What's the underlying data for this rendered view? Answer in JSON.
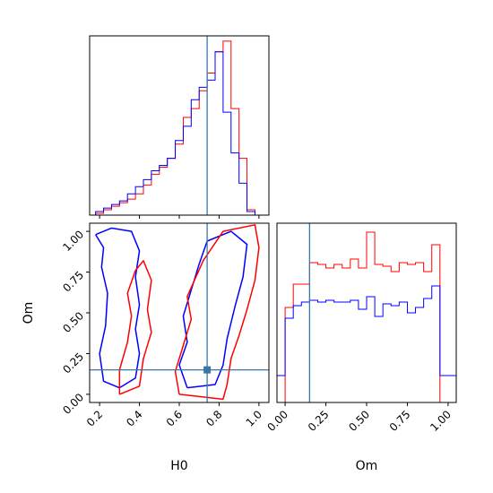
{
  "chart_data": [
    {
      "type": "histogram",
      "panel": "H0 marginal",
      "x": {
        "label": "H0",
        "range": [
          0.15,
          1.05
        ],
        "ticks": [
          0.2,
          0.4,
          0.6,
          0.8,
          1.0
        ]
      },
      "truth": 0.74,
      "bin_edges": [
        0.14,
        0.18,
        0.22,
        0.26,
        0.3,
        0.34,
        0.38,
        0.42,
        0.46,
        0.5,
        0.54,
        0.58,
        0.62,
        0.66,
        0.7,
        0.74,
        0.78,
        0.82,
        0.86,
        0.9,
        0.94,
        0.98,
        1.02
      ],
      "series": [
        {
          "color": "#ff0000",
          "values": [
            0,
            1,
            3,
            5,
            7,
            9,
            12,
            17,
            23,
            27,
            32,
            40,
            55,
            60,
            70,
            80,
            92,
            98,
            60,
            32,
            3,
            0
          ]
        },
        {
          "color": "#0000ff",
          "values": [
            0,
            2,
            4,
            6,
            8,
            12,
            16,
            20,
            25,
            28,
            32,
            42,
            50,
            65,
            72,
            76,
            92,
            58,
            35,
            18,
            2,
            0
          ]
        }
      ]
    },
    {
      "type": "contour",
      "panel": "H0 vs Om",
      "x": {
        "label": "H0",
        "range": [
          0.15,
          1.05
        ],
        "ticks": [
          0.2,
          0.4,
          0.6,
          0.8,
          1.0
        ]
      },
      "y": {
        "label": "Om",
        "range": [
          -0.05,
          1.05
        ],
        "ticks": [
          0.0,
          0.25,
          0.5,
          0.75,
          1.0
        ]
      },
      "truth": {
        "H0": 0.74,
        "Om": 0.15
      },
      "contours": [
        {
          "color": "#0000ff",
          "points": [
            [
              0.18,
              0.98
            ],
            [
              0.22,
              0.9
            ],
            [
              0.21,
              0.78
            ],
            [
              0.24,
              0.62
            ],
            [
              0.23,
              0.42
            ],
            [
              0.2,
              0.25
            ],
            [
              0.22,
              0.08
            ],
            [
              0.3,
              0.04
            ],
            [
              0.38,
              0.1
            ],
            [
              0.4,
              0.25
            ],
            [
              0.38,
              0.4
            ],
            [
              0.4,
              0.55
            ],
            [
              0.38,
              0.72
            ],
            [
              0.4,
              0.88
            ],
            [
              0.36,
              1.0
            ],
            [
              0.26,
              1.02
            ],
            [
              0.18,
              0.98
            ]
          ]
        },
        {
          "color": "#0000ff",
          "points": [
            [
              0.64,
              0.04
            ],
            [
              0.6,
              0.18
            ],
            [
              0.64,
              0.32
            ],
            [
              0.62,
              0.48
            ],
            [
              0.66,
              0.64
            ],
            [
              0.7,
              0.8
            ],
            [
              0.74,
              0.94
            ],
            [
              0.86,
              1.0
            ],
            [
              0.94,
              0.92
            ],
            [
              0.92,
              0.72
            ],
            [
              0.88,
              0.54
            ],
            [
              0.84,
              0.34
            ],
            [
              0.82,
              0.18
            ],
            [
              0.78,
              0.06
            ],
            [
              0.64,
              0.04
            ]
          ]
        },
        {
          "color": "#ff0000",
          "points": [
            [
              0.3,
              0.0
            ],
            [
              0.3,
              0.15
            ],
            [
              0.34,
              0.32
            ],
            [
              0.36,
              0.48
            ],
            [
              0.34,
              0.62
            ],
            [
              0.38,
              0.76
            ],
            [
              0.42,
              0.82
            ],
            [
              0.46,
              0.7
            ],
            [
              0.44,
              0.52
            ],
            [
              0.46,
              0.38
            ],
            [
              0.42,
              0.22
            ],
            [
              0.4,
              0.05
            ],
            [
              0.3,
              0.0
            ]
          ]
        },
        {
          "color": "#ff0000",
          "points": [
            [
              0.6,
              0.0
            ],
            [
              0.58,
              0.14
            ],
            [
              0.62,
              0.3
            ],
            [
              0.66,
              0.46
            ],
            [
              0.64,
              0.6
            ],
            [
              0.72,
              0.82
            ],
            [
              0.82,
              1.0
            ],
            [
              0.98,
              1.04
            ],
            [
              1.0,
              0.9
            ],
            [
              0.98,
              0.7
            ],
            [
              0.94,
              0.52
            ],
            [
              0.9,
              0.36
            ],
            [
              0.86,
              0.22
            ],
            [
              0.84,
              0.06
            ],
            [
              0.82,
              -0.03
            ],
            [
              0.6,
              0.0
            ]
          ]
        }
      ]
    },
    {
      "type": "histogram",
      "panel": "Om marginal",
      "x": {
        "label": "Om",
        "range": [
          -0.05,
          1.05
        ],
        "ticks": [
          0.0,
          0.25,
          0.5,
          0.75,
          1.0
        ]
      },
      "truth": 0.15,
      "bin_edges": [
        -0.05,
        0.0,
        0.05,
        0.1,
        0.15,
        0.2,
        0.25,
        0.3,
        0.35,
        0.4,
        0.45,
        0.5,
        0.55,
        0.6,
        0.65,
        0.7,
        0.75,
        0.8,
        0.85,
        0.9,
        0.95,
        1.0,
        1.05
      ],
      "series": [
        {
          "color": "#ff0000",
          "values": [
            0,
            53,
            66,
            66,
            78,
            77,
            75,
            77,
            75,
            80,
            75,
            95,
            77,
            76,
            73,
            78,
            77,
            78,
            73,
            88,
            0,
            0
          ]
        },
        {
          "color": "#0000ff",
          "values": [
            15,
            47,
            54,
            56,
            57,
            56,
            57,
            56,
            56,
            57,
            52,
            59,
            48,
            55,
            54,
            56,
            50,
            53,
            58,
            65,
            15,
            15
          ]
        }
      ]
    }
  ]
}
